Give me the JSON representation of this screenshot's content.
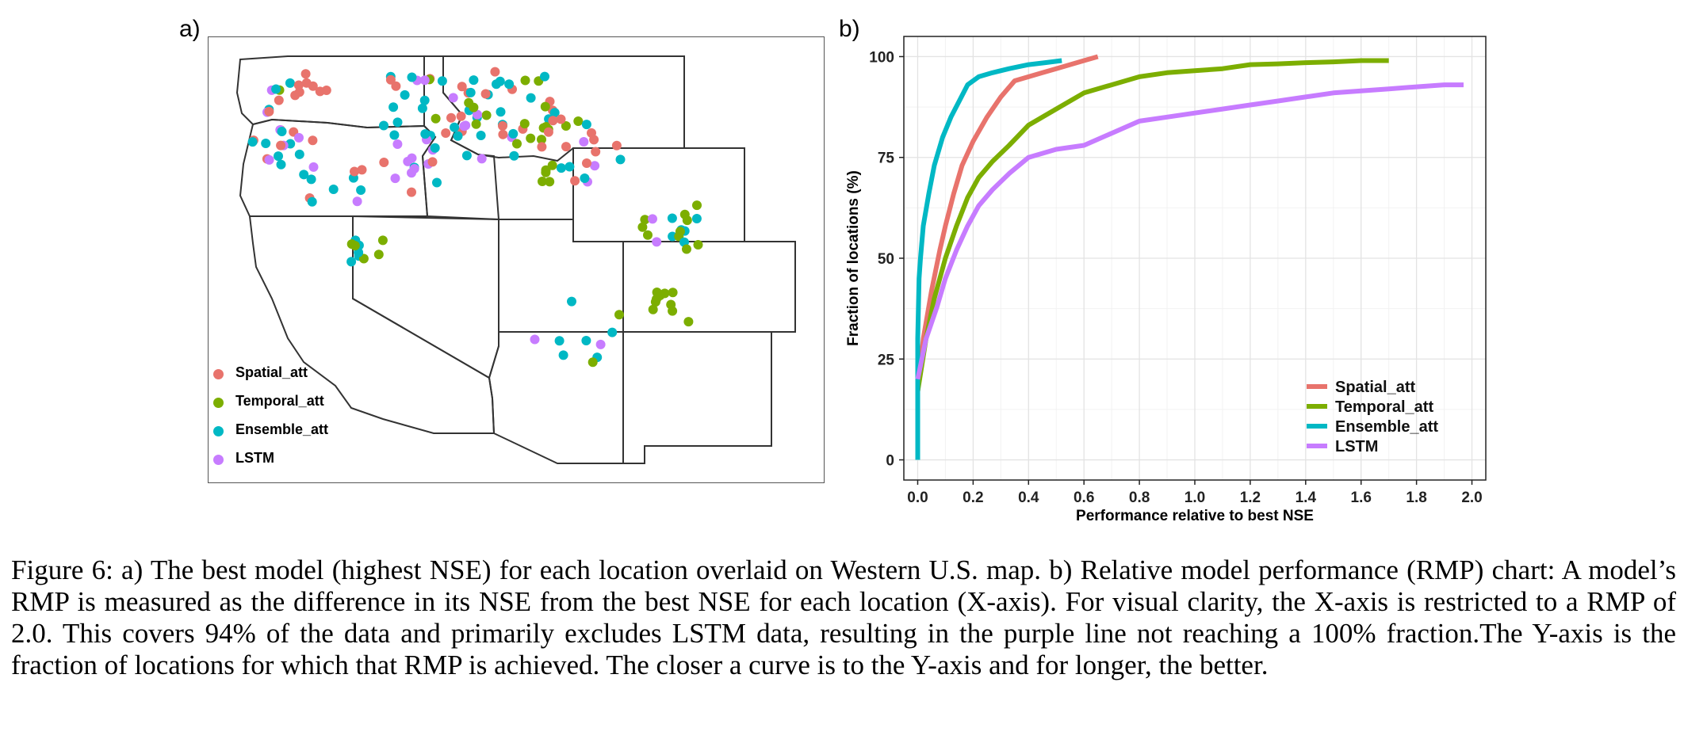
{
  "panel_a_label": "a)",
  "panel_b_label": "b)",
  "map": {
    "legend": [
      {
        "label": "Spatial_att",
        "color": "#e8736c"
      },
      {
        "label": "Temporal_att",
        "color": "#7cae00"
      },
      {
        "label": "Ensemble_att",
        "color": "#00b8c4"
      },
      {
        "label": "LSTM",
        "color": "#c77cff"
      }
    ]
  },
  "chart_data": {
    "type": "line",
    "xlabel": "Performance relative to best NSE",
    "ylabel": "Fraction of locations (%)",
    "xlim": [
      -0.05,
      2.05
    ],
    "ylim": [
      -5,
      105
    ],
    "xticks": [
      0.0,
      0.2,
      0.4,
      0.6,
      0.8,
      1.0,
      1.2,
      1.4,
      1.6,
      1.8,
      2.0
    ],
    "xtick_labels": [
      "0.0",
      "0.2",
      "0.4",
      "0.6",
      "0.8",
      "1.0",
      "1.2",
      "1.4",
      "1.6",
      "1.8",
      "2.0"
    ],
    "yticks": [
      0,
      25,
      50,
      75,
      100
    ],
    "ytick_labels": [
      "0",
      "25",
      "50",
      "75",
      "100"
    ],
    "grid": true,
    "legend_position": "bottom-right",
    "series": [
      {
        "name": "Spatial_att",
        "color": "#e8736c",
        "x": [
          0.0,
          0.02,
          0.05,
          0.08,
          0.1,
          0.13,
          0.16,
          0.2,
          0.25,
          0.3,
          0.35,
          0.4,
          0.45,
          0.5,
          0.55,
          0.6,
          0.65
        ],
        "y": [
          17,
          30,
          42,
          52,
          58,
          66,
          73,
          79,
          85,
          90,
          94,
          95,
          96,
          97,
          98,
          99,
          100
        ]
      },
      {
        "name": "Temporal_att",
        "color": "#7cae00",
        "x": [
          0.0,
          0.03,
          0.06,
          0.1,
          0.14,
          0.18,
          0.22,
          0.27,
          0.33,
          0.4,
          0.5,
          0.6,
          0.7,
          0.8,
          0.9,
          1.0,
          1.1,
          1.2,
          1.3,
          1.4,
          1.5,
          1.6,
          1.7
        ],
        "y": [
          17,
          30,
          40,
          50,
          58,
          65,
          70,
          74,
          78,
          83,
          87,
          91,
          93,
          95,
          96,
          96.5,
          97,
          98,
          98.2,
          98.5,
          98.7,
          99,
          99
        ]
      },
      {
        "name": "Ensemble_att",
        "color": "#00b8c4",
        "x": [
          0.0,
          0.0,
          0.005,
          0.01,
          0.02,
          0.04,
          0.06,
          0.09,
          0.12,
          0.15,
          0.18,
          0.22,
          0.27,
          0.33,
          0.4,
          0.46,
          0.52
        ],
        "y": [
          0,
          30,
          45,
          50,
          58,
          66,
          73,
          80,
          85,
          89,
          93,
          95,
          96,
          97,
          98,
          98.5,
          99
        ]
      },
      {
        "name": "LSTM",
        "color": "#c77cff",
        "x": [
          0.0,
          0.03,
          0.07,
          0.1,
          0.14,
          0.18,
          0.22,
          0.27,
          0.33,
          0.4,
          0.5,
          0.6,
          0.7,
          0.8,
          0.9,
          1.0,
          1.1,
          1.2,
          1.3,
          1.4,
          1.5,
          1.6,
          1.7,
          1.8,
          1.9,
          1.97
        ],
        "y": [
          20,
          30,
          38,
          45,
          52,
          58,
          63,
          67,
          71,
          75,
          77,
          78,
          81,
          84,
          85,
          86,
          87,
          88,
          89,
          90,
          91,
          91.5,
          92,
          92.5,
          93,
          93
        ]
      }
    ]
  },
  "caption": "Figure 6: a) The best model (highest NSE) for each location overlaid on Western U.S. map. b) Relative model performance (RMP) chart: A model’s RMP is measured as the difference in its NSE from the best NSE for each location (X-axis). For visual clarity, the X-axis is restricted to a RMP of 2.0. This covers 94% of the data and primarily excludes LSTM data, resulting in the purple line not reaching a 100% fraction.The Y-axis is the fraction of locations for which that RMP is achieved. The closer a curve is to the Y-axis and for longer, the better."
}
